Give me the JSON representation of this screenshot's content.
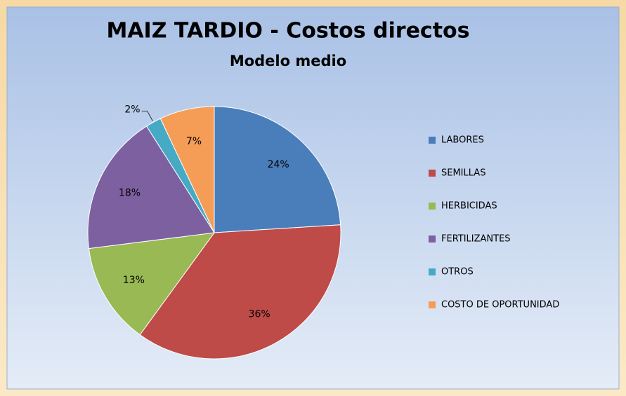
{
  "chart_data": {
    "type": "pie",
    "title": "MAIZ TARDIO - Costos directos",
    "subtitle": "Modelo medio",
    "categories": [
      "LABORES",
      "SEMILLAS",
      "HERBICIDAS",
      "FERTILIZANTES",
      "OTROS",
      "COSTO DE OPORTUNIDAD"
    ],
    "values": [
      24,
      36,
      13,
      18,
      2,
      7
    ],
    "value_labels": [
      "24%",
      "36%",
      "13%",
      "18%",
      "2%",
      "7%"
    ],
    "colors": [
      "#4a7ebb",
      "#be4b48",
      "#98b954",
      "#7d60a0",
      "#46aac5",
      "#f59d56"
    ],
    "legend": "right"
  }
}
